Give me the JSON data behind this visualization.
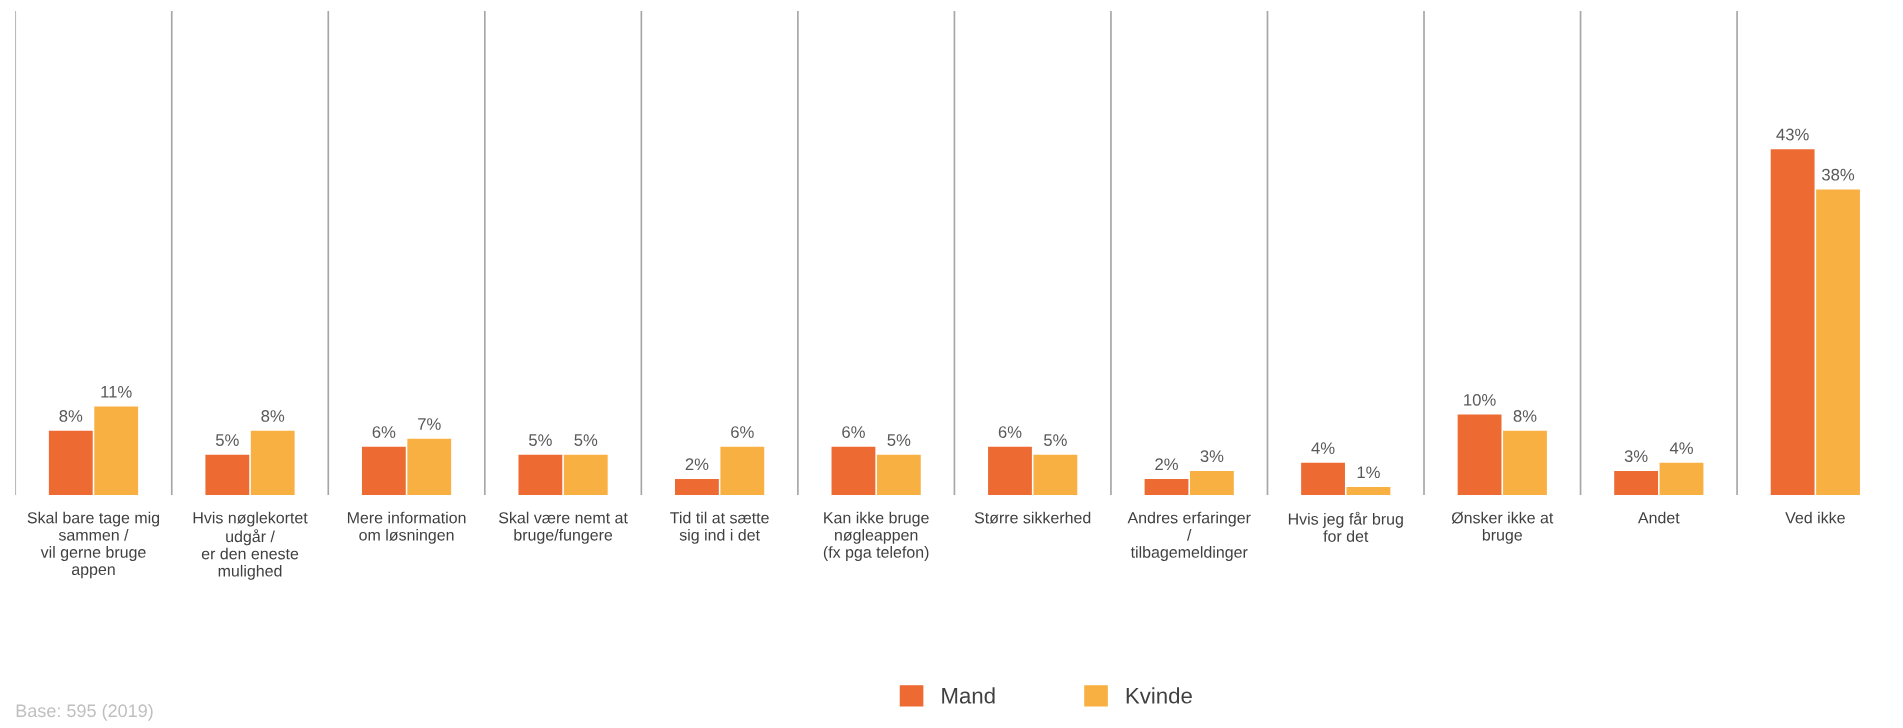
{
  "chart_data": {
    "type": "bar",
    "categories": [
      "Skal bare tage mig\nsammen /\nvil gerne bruge\nappen",
      "Hvis nøglekortet\nudgår /\ner den eneste\nmulighed",
      "Mere information\nom løsningen",
      "Skal være nemt at\nbruge/fungere",
      "Tid til at sætte\nsig ind i det",
      "Kan ikke bruge\nnøgleappen\n(fx pga telefon)",
      "Større sikkerhed",
      "Andres erfaringer\n/\ntilbagemeldinger",
      "Hvis jeg får brug\nfor det",
      "Ønsker ikke at\nbruge",
      "Andet",
      "Ved ikke"
    ],
    "series": [
      {
        "name": "Mand",
        "color": "#ed6b33",
        "values": [
          8,
          5,
          6,
          5,
          2,
          6,
          6,
          2,
          4,
          10,
          3,
          43
        ],
        "value_labels": [
          "8%",
          "5%",
          "6%",
          "5%",
          "2%",
          "6%",
          "6%",
          "2%",
          "4%",
          "10%",
          "3%",
          "43%"
        ]
      },
      {
        "name": "Kvinde",
        "color": "#f9b043",
        "values": [
          11,
          8,
          7,
          5,
          6,
          5,
          5,
          3,
          1,
          8,
          4,
          38
        ],
        "value_labels": [
          "11%",
          "8%",
          "7%",
          "5%",
          "6%",
          "5%",
          "5%",
          "3%",
          "1%",
          "8%",
          "4%",
          "38%"
        ]
      }
    ],
    "grid": "x",
    "legend": "bottom",
    "annotations": [
      "Base: 595 (2019)"
    ]
  }
}
